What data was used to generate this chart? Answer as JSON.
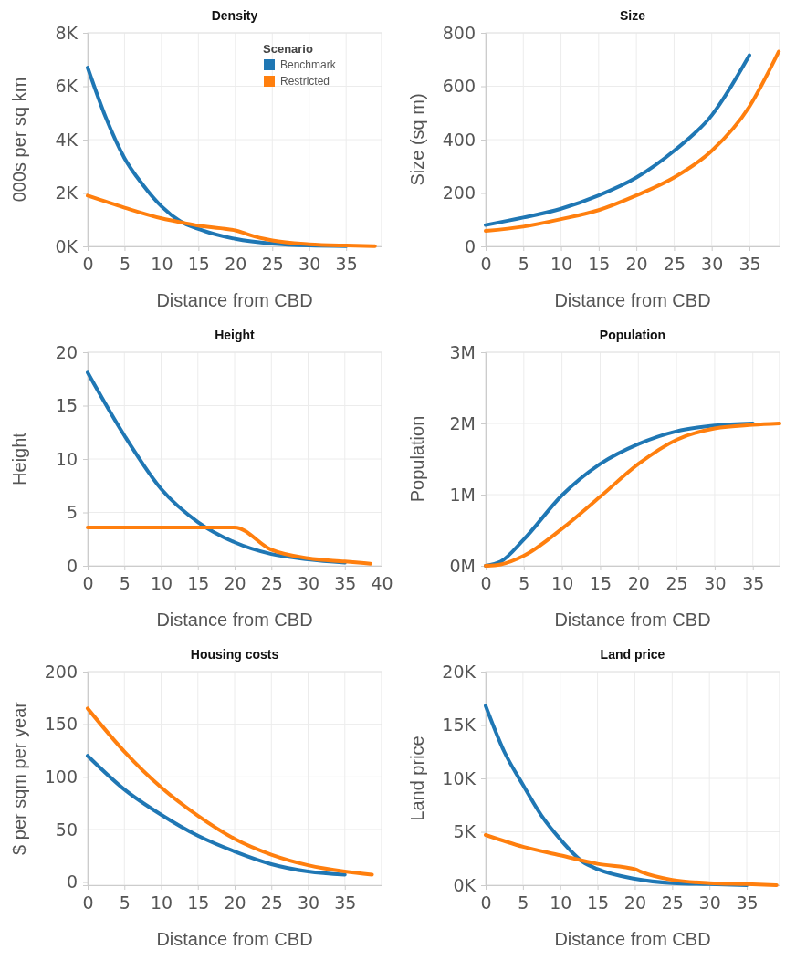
{
  "chart_data": [
    {
      "type": "line",
      "title": "Density",
      "xlabel": "Distance from CBD",
      "ylabel": "000s per sq km",
      "legend": "top right",
      "legend_title": "Scenario",
      "grid": true,
      "xlim": [
        0,
        39.8
      ],
      "xticks": [
        0,
        5,
        10,
        15,
        20,
        25,
        30,
        35
      ],
      "ylim": [
        0,
        8000
      ],
      "yticks": [
        {
          "value": 0,
          "label": "0K"
        },
        {
          "value": 2000,
          "label": "2K"
        },
        {
          "value": 4000,
          "label": "4K"
        },
        {
          "value": 6000,
          "label": "6K"
        },
        {
          "value": 8000,
          "label": "8K"
        }
      ],
      "series": [
        {
          "name": "Benchmark",
          "color": "#1f77b4",
          "x": [
            0,
            2.5,
            5,
            7.5,
            10,
            12.5,
            15,
            20,
            25,
            30,
            35
          ],
          "values": [
            6700,
            4800,
            3300,
            2300,
            1500,
            950,
            650,
            280,
            100,
            30,
            10
          ]
        },
        {
          "name": "Restricted",
          "color": "#ff7f0e",
          "x": [
            0,
            5,
            10,
            13,
            15,
            18,
            20,
            21,
            22,
            25,
            30,
            35,
            38.9
          ],
          "values": [
            1900,
            1450,
            1050,
            880,
            780,
            680,
            600,
            520,
            420,
            220,
            80,
            30,
            10
          ]
        }
      ]
    },
    {
      "type": "line",
      "title": "Size",
      "xlabel": "Distance from CBD",
      "ylabel": "Size (sq m)",
      "legend": false,
      "grid": true,
      "xlim": [
        0,
        39
      ],
      "xticks": [
        0,
        5,
        10,
        15,
        20,
        25,
        30,
        35
      ],
      "ylim": [
        0,
        800
      ],
      "yticks": [
        0,
        200,
        400,
        600,
        800
      ],
      "series": [
        {
          "color": "#1f77b4",
          "x": [
            0,
            5,
            10,
            15,
            20,
            25,
            30,
            35
          ],
          "values": [
            80,
            108,
            141,
            191,
            258,
            358,
            491,
            716
          ]
        },
        {
          "color": "#ff7f0e",
          "x": [
            0,
            5,
            10,
            15,
            20,
            25,
            30,
            35,
            38.9
          ],
          "values": [
            58,
            74,
            102,
            136,
            191,
            258,
            358,
            524,
            730
          ]
        }
      ]
    },
    {
      "type": "line",
      "title": "Height",
      "xlabel": "Distance from CBD",
      "ylabel": "Height",
      "legend": false,
      "grid": true,
      "xlim": [
        0,
        40
      ],
      "xticks": [
        0,
        5,
        10,
        15,
        20,
        25,
        30,
        35,
        40
      ],
      "ylim": [
        0,
        20
      ],
      "yticks": [
        0,
        5,
        10,
        15,
        20
      ],
      "series": [
        {
          "color": "#1f77b4",
          "x": [
            0,
            5,
            10,
            15,
            20,
            25,
            30,
            35
          ],
          "values": [
            18.1,
            12.2,
            7.2,
            4.1,
            2.2,
            1.1,
            0.6,
            0.3
          ]
        },
        {
          "color": "#ff7f0e",
          "x": [
            0,
            20,
            25,
            30,
            35,
            38.5
          ],
          "values": [
            3.6,
            3.6,
            1.5,
            0.7,
            0.4,
            0.2
          ]
        }
      ]
    },
    {
      "type": "line",
      "title": "Population",
      "xlabel": "Distance from CBD",
      "ylabel": "Population",
      "legend": false,
      "grid": true,
      "xlim": [
        0,
        38.5
      ],
      "xticks": [
        0,
        5,
        10,
        15,
        20,
        25,
        30,
        35
      ],
      "ylim": [
        0,
        3000000
      ],
      "yticks": [
        {
          "value": 0,
          "label": "0M"
        },
        {
          "value": 1000000,
          "label": "1M"
        },
        {
          "value": 2000000,
          "label": "2M"
        },
        {
          "value": 3000000,
          "label": "3M"
        }
      ],
      "series": [
        {
          "color": "#1f77b4",
          "x": [
            0,
            2,
            5,
            10,
            15,
            20,
            25,
            30,
            35
          ],
          "values": [
            0,
            60000,
            370000,
            990000,
            1430000,
            1710000,
            1890000,
            1970000,
            2000000
          ]
        },
        {
          "color": "#ff7f0e",
          "x": [
            0,
            2,
            5,
            10,
            15,
            20,
            25,
            30,
            35,
            38.5
          ],
          "values": [
            0,
            20000,
            140000,
            520000,
            970000,
            1430000,
            1770000,
            1930000,
            1980000,
            2000000
          ]
        }
      ]
    },
    {
      "type": "line",
      "title": "Housing costs",
      "xlabel": "Distance from CBD",
      "ylabel": "$ per sqm per year",
      "legend": false,
      "grid": true,
      "xlim": [
        0,
        40
      ],
      "xticks": [
        0,
        5,
        10,
        15,
        20,
        25,
        30,
        35
      ],
      "ylim": [
        -3,
        200
      ],
      "yticks": [
        0,
        50,
        100,
        150,
        200
      ],
      "series": [
        {
          "color": "#1f77b4",
          "x": [
            0,
            5,
            10,
            15,
            20,
            25,
            30,
            35
          ],
          "values": [
            120,
            88,
            64,
            44,
            29,
            17,
            10,
            7
          ]
        },
        {
          "color": "#ff7f0e",
          "x": [
            0,
            5,
            10,
            15,
            20,
            25,
            30,
            35,
            38.7
          ],
          "values": [
            165,
            124,
            90,
            63,
            41,
            26,
            16,
            10,
            7
          ]
        }
      ]
    },
    {
      "type": "line",
      "title": "Land price",
      "xlabel": "Distance from CBD",
      "ylabel": "Land price",
      "legend": false,
      "grid": true,
      "xlim": [
        0,
        39.4
      ],
      "xticks": [
        0,
        5,
        10,
        15,
        20,
        25,
        30,
        35
      ],
      "ylim": [
        0,
        20000
      ],
      "yticks": [
        {
          "value": 0,
          "label": "0K"
        },
        {
          "value": 5000,
          "label": "5K"
        },
        {
          "value": 10000,
          "label": "10K"
        },
        {
          "value": 15000,
          "label": "15K"
        },
        {
          "value": 20000,
          "label": "20K"
        }
      ],
      "series": [
        {
          "color": "#1f77b4",
          "x": [
            0,
            2.5,
            5,
            7.5,
            10,
            13,
            15,
            20,
            25,
            30,
            35
          ],
          "values": [
            16800,
            12500,
            9400,
            6500,
            4300,
            2200,
            1500,
            600,
            200,
            100,
            0
          ]
        },
        {
          "color": "#ff7f0e",
          "x": [
            0,
            5,
            10,
            15,
            20,
            21,
            25,
            30,
            35,
            39
          ],
          "values": [
            4700,
            3600,
            2800,
            2000,
            1500,
            1200,
            500,
            200,
            100,
            0
          ]
        }
      ]
    }
  ]
}
